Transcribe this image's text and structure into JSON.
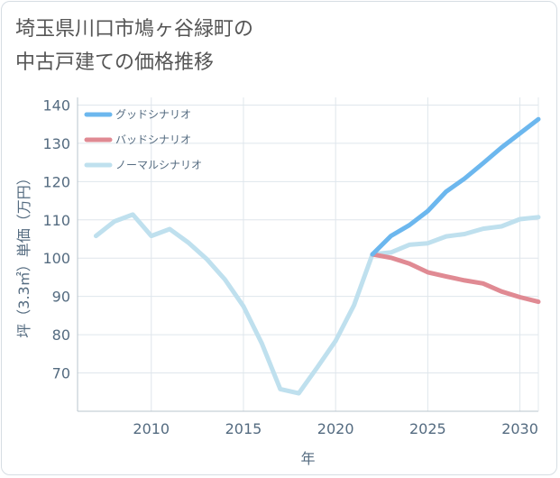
{
  "title": "埼玉県川口市鳩ヶ谷緑町の\n中古戸建ての価格推移",
  "chart_data": {
    "type": "line",
    "xlabel": "年",
    "ylabel": "坪（3.3㎡）単価（万円）",
    "xlim": [
      2006,
      2031
    ],
    "ylim": [
      60,
      142
    ],
    "xticks": [
      2010,
      2015,
      2020,
      2025,
      2030
    ],
    "yticks": [
      70,
      80,
      90,
      100,
      110,
      120,
      130,
      140
    ],
    "grid": true,
    "legend_position": "top-left",
    "series": [
      {
        "name": "グッドシナリオ",
        "color": "#6cb7ee",
        "x": [
          2022,
          2023,
          2024,
          2025,
          2026,
          2027,
          2028,
          2029,
          2030,
          2031
        ],
        "values": [
          101,
          105.8,
          108.6,
          112.3,
          117.4,
          120.8,
          124.8,
          128.9,
          132.6,
          136.3
        ]
      },
      {
        "name": "バッドシナリオ",
        "color": "#e08a93",
        "x": [
          2022,
          2023,
          2024,
          2025,
          2026,
          2027,
          2028,
          2029,
          2030,
          2031
        ],
        "values": [
          101,
          100.1,
          98.6,
          96.3,
          95.2,
          94.2,
          93.4,
          91.3,
          89.8,
          88.6
        ]
      },
      {
        "name": "ノーマルシナリオ",
        "color": "#bfe0ee",
        "x": [
          2007,
          2008,
          2009,
          2010,
          2011,
          2012,
          2013,
          2014,
          2015,
          2016,
          2017,
          2018,
          2019,
          2020,
          2021,
          2022,
          2023,
          2024,
          2025,
          2026,
          2027,
          2028,
          2029,
          2030,
          2031
        ],
        "values": [
          105.8,
          109.6,
          111.4,
          105.8,
          107.6,
          104.1,
          99.8,
          94.4,
          87.4,
          77.7,
          65.8,
          64.7,
          71.4,
          78.4,
          87.7,
          101,
          101.5,
          103.5,
          103.9,
          105.7,
          106.3,
          107.7,
          108.3,
          110.2,
          110.7
        ]
      }
    ]
  }
}
